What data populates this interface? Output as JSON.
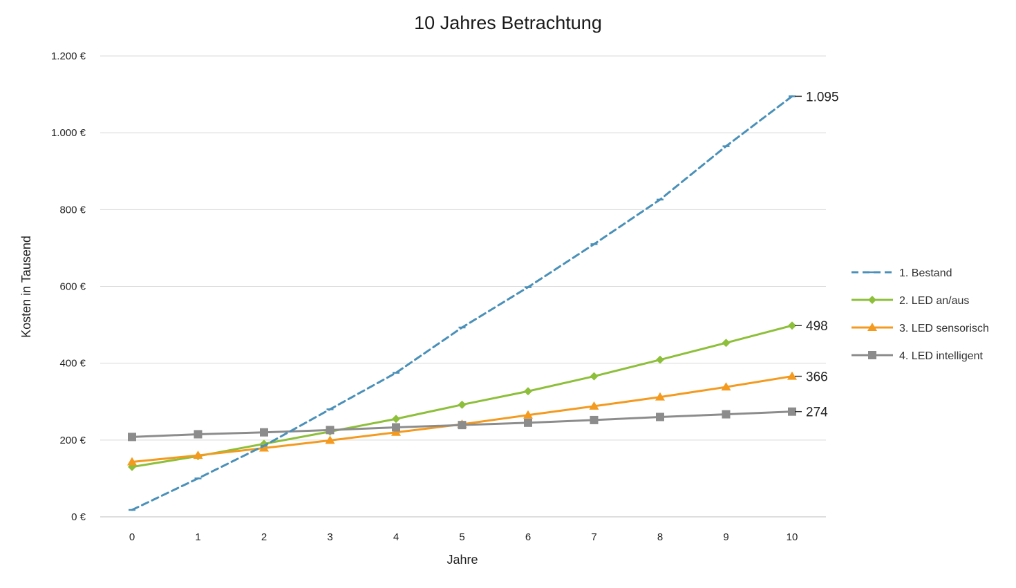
{
  "chart_data": {
    "type": "line",
    "title": "10 Jahres Betrachtung",
    "xlabel": "Jahre",
    "ylabel": "Kosten in Tausend",
    "x": [
      0,
      1,
      2,
      3,
      4,
      5,
      6,
      7,
      8,
      9,
      10
    ],
    "x_tick_labels": [
      "0",
      "1",
      "2",
      "3",
      "4",
      "5",
      "6",
      "7",
      "8",
      "9",
      "10"
    ],
    "ylim": [
      0,
      1200
    ],
    "y_ticks": [
      0,
      200,
      400,
      600,
      800,
      1000,
      1200
    ],
    "y_tick_labels": [
      "0 €",
      "200 €",
      "400 €",
      "600 €",
      "800 €",
      "1.000 €",
      "1.200 €"
    ],
    "grid": "horizontal",
    "legend_position": "right",
    "series": [
      {
        "name": "1. Bestand",
        "color": "#4a90b8",
        "line_style": "dashed",
        "marker": "dash",
        "values": [
          18,
          100,
          185,
          280,
          375,
          493,
          598,
          710,
          826,
          965,
          1095
        ],
        "end_label": "1.095"
      },
      {
        "name": "2. LED an/aus",
        "color": "#8dbf3a",
        "line_style": "solid",
        "marker": "diamond",
        "values": [
          130,
          158,
          190,
          222,
          255,
          292,
          327,
          366,
          409,
          453,
          498
        ],
        "end_label": "498"
      },
      {
        "name": "3. LED sensorisch",
        "color": "#f39a1f",
        "line_style": "solid",
        "marker": "triangle",
        "values": [
          143,
          160,
          179,
          199,
          220,
          241,
          265,
          288,
          312,
          338,
          366
        ],
        "end_label": "366"
      },
      {
        "name": "4. LED intelligent",
        "color": "#8c8c8c",
        "line_style": "solid",
        "marker": "square",
        "values": [
          208,
          215,
          220,
          226,
          233,
          239,
          245,
          252,
          260,
          267,
          274
        ],
        "end_label": "274"
      }
    ]
  }
}
